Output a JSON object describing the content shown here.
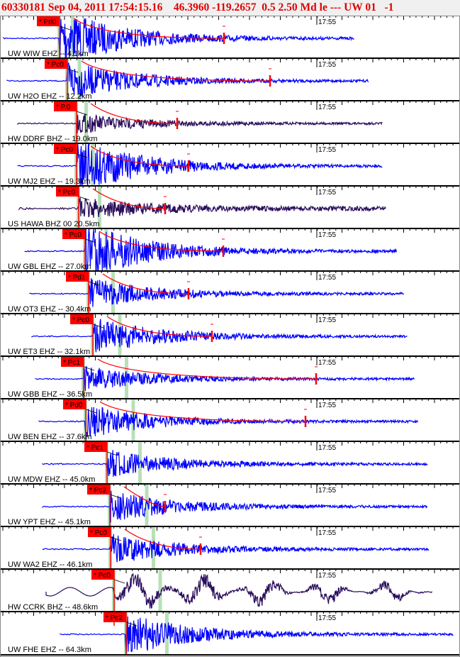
{
  "header": {
    "title": "60330181 Sep 04, 2011 17:54:15.16    46.3960 -119.2657  0.5 2.50 Md le --- UW 01   -1"
  },
  "time_label": "17:55",
  "colors": {
    "header_text": "#e00000",
    "trace_blue": "#0000ff",
    "trace_purple": "#2a0d5c",
    "pick": "#ff0000",
    "green": "#b8e0b8"
  },
  "traces": [
    {
      "label": "UW WIW EHZ -- 4.1km",
      "pick": "* Pd0",
      "color": "blue"
    },
    {
      "label": "UW H2O EHZ -- 12.2km",
      "pick": "* Pc0",
      "color": "blue"
    },
    {
      "label": "HW DDRF BHZ -- 19.0km",
      "pick": "* P.0",
      "color": "purple"
    },
    {
      "label": "UW MJ2 EHZ -- 19.3km",
      "pick": "* Pc0",
      "color": "blue"
    },
    {
      "label": "US HAWA BHZ 00 20.5km",
      "pick": "* Pc0",
      "color": "purple"
    },
    {
      "label": "UW GBL EHZ -- 27.0km",
      "pick": "* Pc0",
      "color": "blue"
    },
    {
      "label": "UW OT3 EHZ -- 30.4km",
      "pick": "* Pd1",
      "color": "blue"
    },
    {
      "label": "UW ET3 EHZ -- 32.1km",
      "pick": "* Pc0",
      "color": "blue"
    },
    {
      "label": "UW GBB EHZ -- 36.5km",
      "pick": "* Pc1",
      "color": "blue"
    },
    {
      "label": "UW BEN EHZ -- 37.6km",
      "pick": "* Pd0",
      "color": "blue"
    },
    {
      "label": "UW MDW EHZ -- 45.0km",
      "pick": "* Pc1",
      "color": "blue"
    },
    {
      "label": "UW YPT EHZ -- 45.1km",
      "pick": "* Pc2",
      "color": "blue"
    },
    {
      "label": "UW WA2 EHZ -- 46.1km",
      "pick": "* Pc0",
      "color": "blue"
    },
    {
      "label": "HW CCRK BHZ -- 48.6km",
      "pick": "* Pc0",
      "color": "purple"
    },
    {
      "label": "UW FHE EHZ -- 64.3km",
      "pick": "* Pc2",
      "color": "blue"
    }
  ]
}
